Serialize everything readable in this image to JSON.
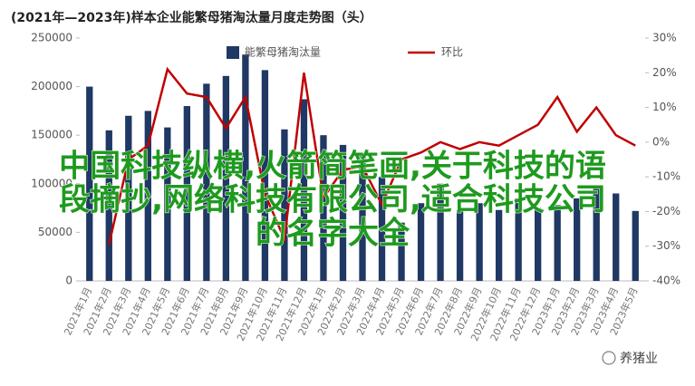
{
  "chart_data": {
    "type": "bar_line",
    "title": "(2021年—2023年)样本企业能繁母猪淘汰量月度走势图（头）",
    "categories": [
      "2021年1月",
      "2021年2月",
      "2021年3月",
      "2021年4月",
      "2021年5月",
      "2021年6月",
      "2021年7月",
      "2021年8月",
      "2021年9月",
      "2021年10月",
      "2021年11月",
      "2021年12月",
      "2022年1月",
      "2022年2月",
      "2022年3月",
      "2022年4月",
      "2022年5月",
      "2022年6月",
      "2022年7月",
      "2022年8月",
      "2022年9月",
      "2022年10月",
      "2022年11月",
      "2022年12月",
      "2023年1月",
      "2023年2月",
      "2023年3月",
      "2023年4月",
      "2023年5月"
    ],
    "series": [
      {
        "name": "能繁母猪淘汰量",
        "color": "#1f3864",
        "values": [
          200000,
          155000,
          170000,
          175000,
          158000,
          180000,
          203000,
          211000,
          233000,
          217000,
          156000,
          187000,
          150000,
          140000,
          130000,
          107000,
          60000,
          80000,
          100000,
          73000,
          80000,
          73000,
          85000,
          75000,
          78000,
          85000,
          98000,
          90000,
          72000
        ]
      },
      {
        "name": "环比",
        "color": "#c00000",
        "axis": "y2",
        "values": [
          null,
          -29.5,
          -5,
          -1,
          21,
          14,
          13,
          4,
          13,
          -15,
          -28,
          20,
          -16,
          -8,
          -7,
          -18,
          -5,
          -3,
          0,
          -2,
          0,
          -1,
          2,
          5,
          13,
          3,
          10,
          2,
          -1
        ]
      }
    ],
    "ylim": [
      0,
      250000
    ],
    "yticks": [
      0,
      50000,
      100000,
      150000,
      200000,
      250000
    ],
    "y2lim": [
      -40,
      30
    ],
    "y2ticks": [
      {
        "value": -40,
        "label": "-40%"
      },
      {
        "value": -30,
        "label": "-30%"
      },
      {
        "value": -20,
        "label": "-20%"
      },
      {
        "value": -10,
        "label": "-10%"
      },
      {
        "value": 0,
        "label": "0%"
      },
      {
        "value": 10,
        "label": "10%"
      },
      {
        "value": 20,
        "label": "20%"
      },
      {
        "value": 30,
        "label": "30%"
      }
    ],
    "overlay": [
      "中国科技纵横,火箭简笔画,关于科技的语",
      "段摘抄,网络科技有限公司,适合科技公司",
      "的名字大全"
    ],
    "watermark": "养猪业"
  }
}
